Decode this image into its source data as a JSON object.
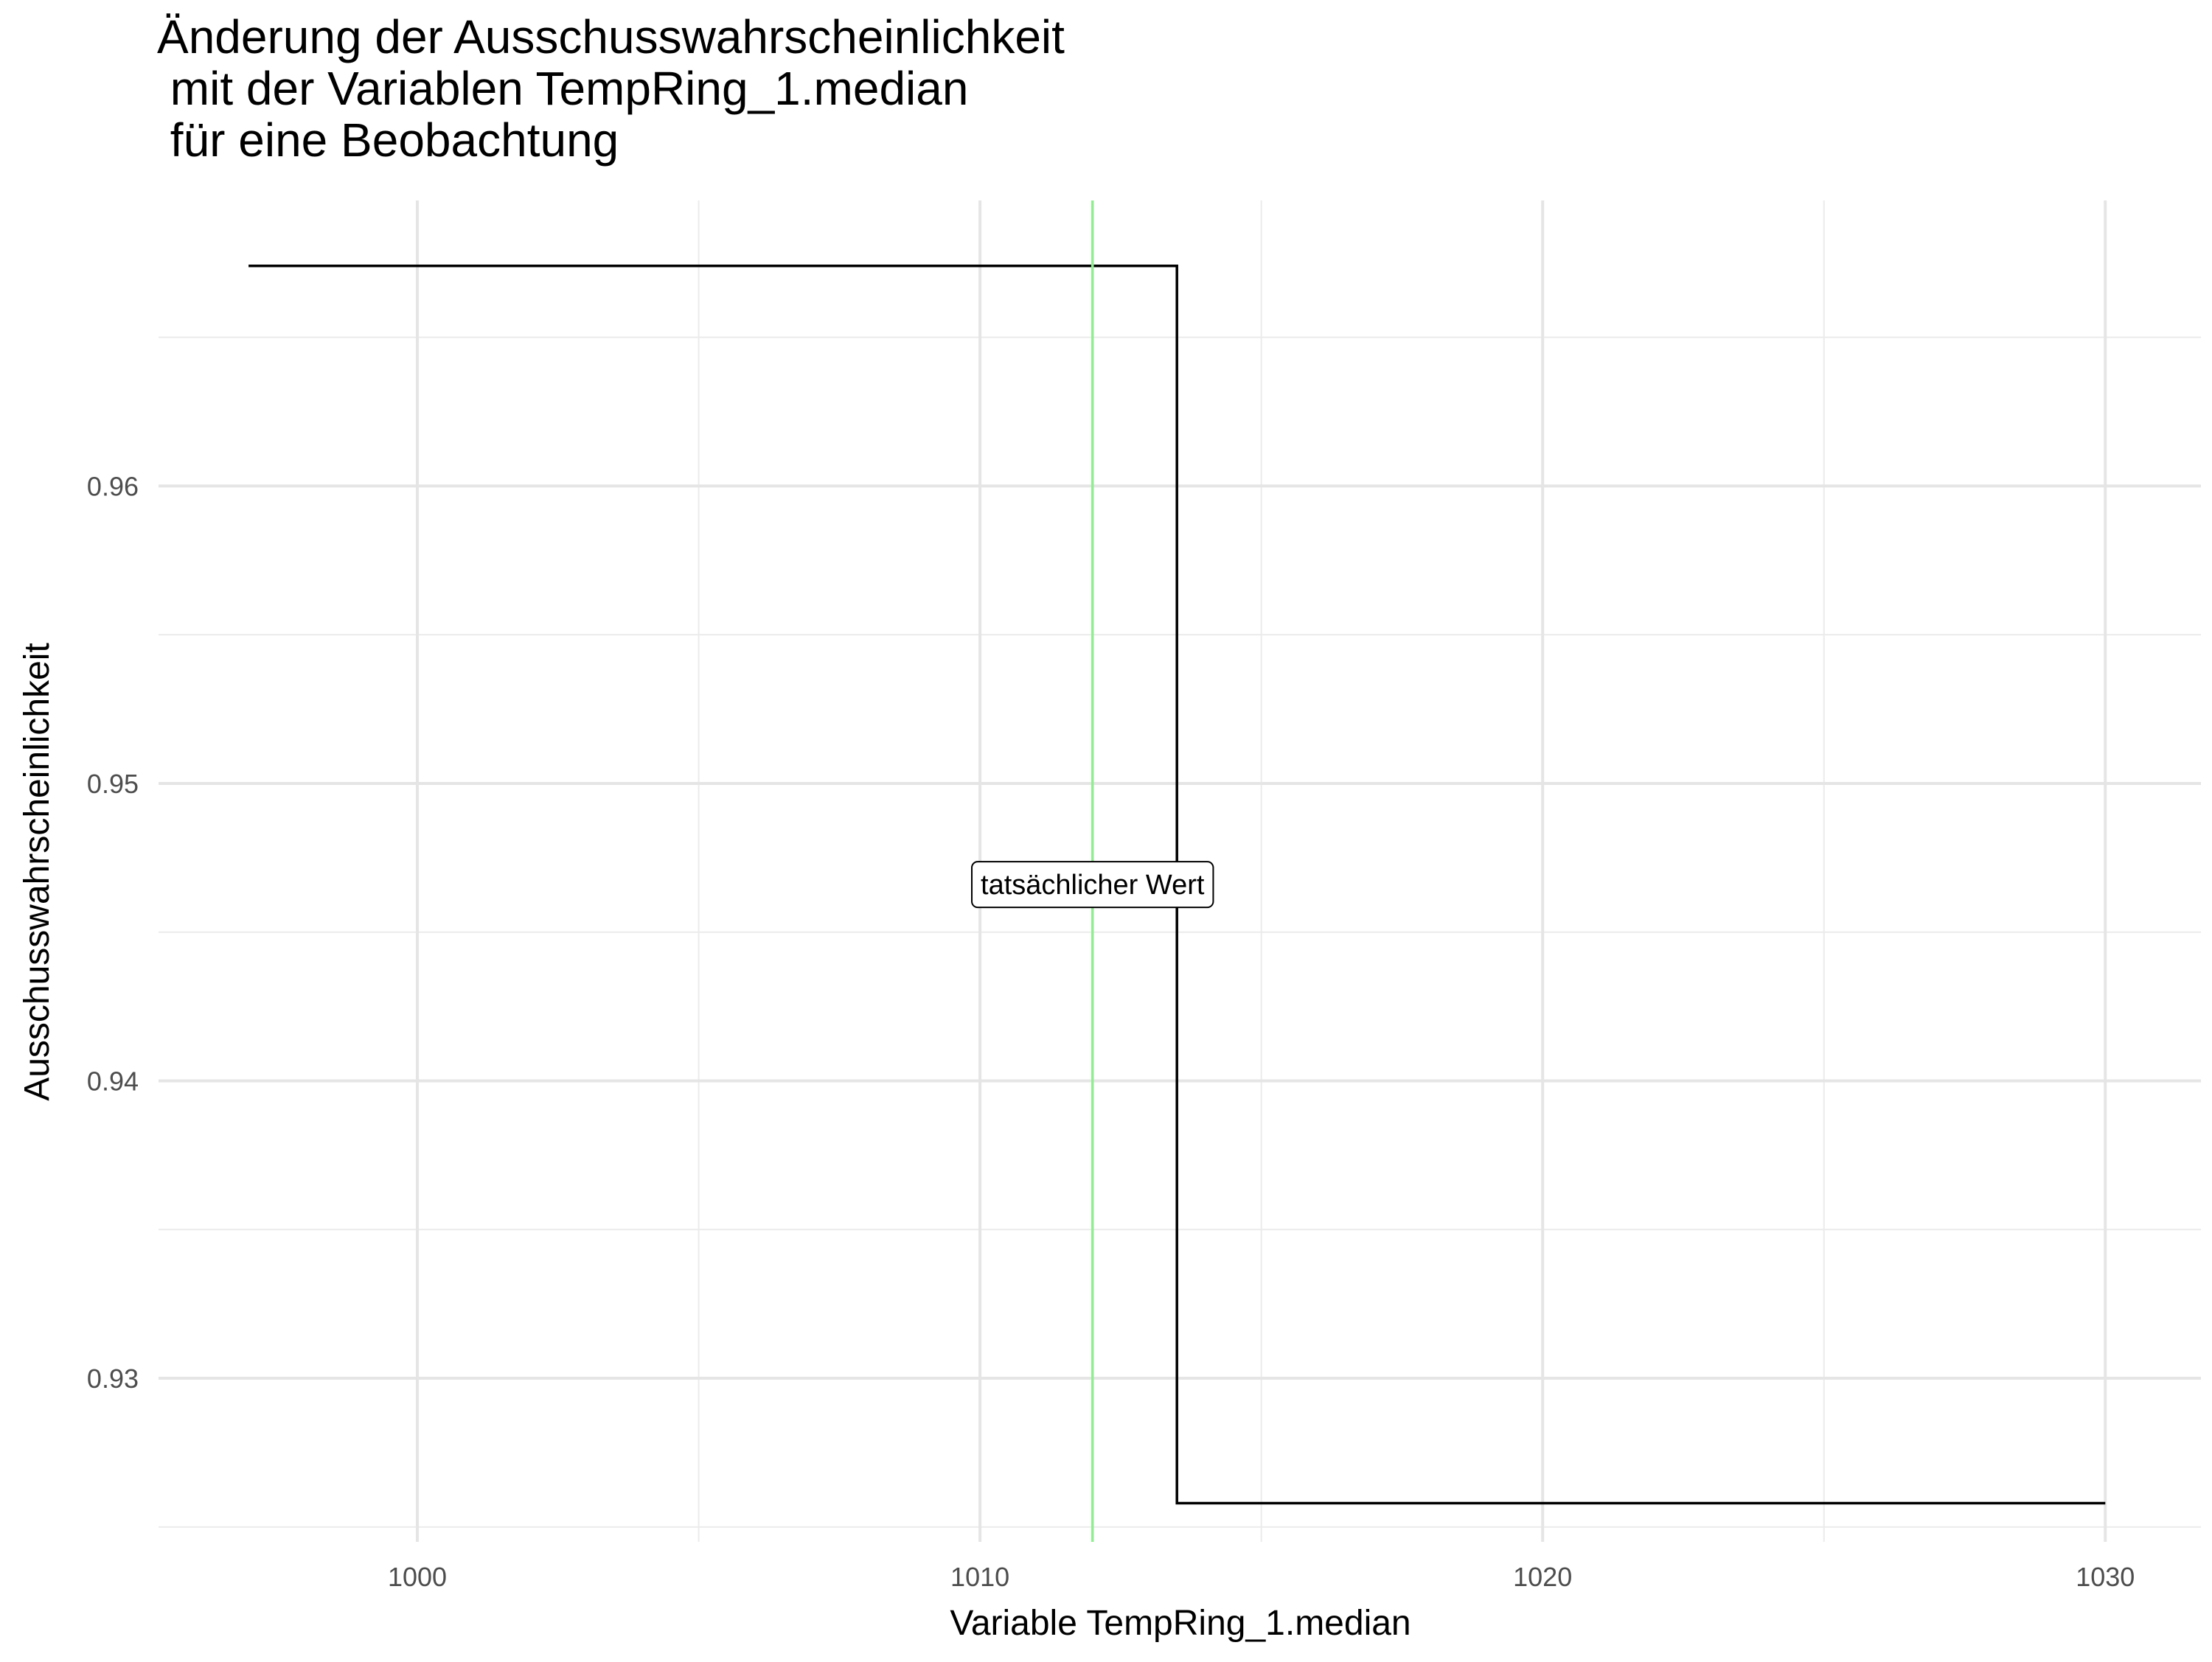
{
  "chart_data": {
    "type": "line",
    "title_lines": [
      "Änderung der Ausschusswahrscheinlichkeit",
      " mit der Variablen TempRing_1.median",
      " für eine Beobachtung"
    ],
    "xlabel": "Variable TempRing_1.median",
    "ylabel": "Ausschusswahrscheinlichkeit",
    "xlim": [
      995.4,
      1031.7
    ],
    "ylim": [
      0.9245,
      0.9696
    ],
    "x_ticks": [
      1000,
      1010,
      1020,
      1030
    ],
    "x_tick_labels": [
      "1000",
      "1010",
      "1020",
      "1030"
    ],
    "x_minor_ticks": [
      1005,
      1015,
      1025
    ],
    "y_ticks": [
      0.93,
      0.94,
      0.95,
      0.96
    ],
    "y_tick_labels": [
      "0.93",
      "0.94",
      "0.95",
      "0.96"
    ],
    "y_minor_ticks": [
      0.925,
      0.935,
      0.945,
      0.955,
      0.965
    ],
    "grid": true,
    "series": [
      {
        "type": "step",
        "color": "#000000",
        "points": [
          {
            "x": 997.0,
            "y": 0.9674
          },
          {
            "x": 1013.5,
            "y": 0.9674
          },
          {
            "x": 1013.5,
            "y": 0.9258
          },
          {
            "x": 1030.0,
            "y": 0.9258
          }
        ]
      }
    ],
    "reference_line": {
      "x": 1012.0,
      "color": "#90ee90",
      "label": "tatsächlicher Wert",
      "label_y": 0.9466
    }
  }
}
